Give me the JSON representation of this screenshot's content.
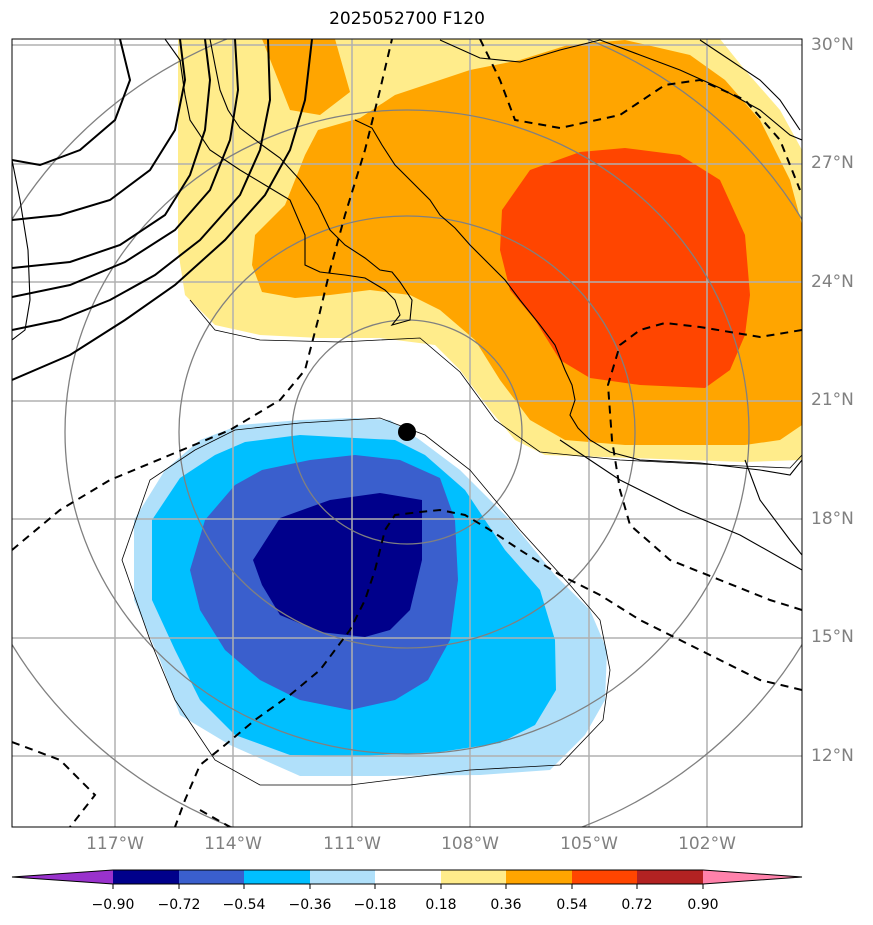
{
  "title": "2025052700 F120",
  "lat_labels": [
    "30°N",
    "27°N",
    "24°N",
    "21°N",
    "18°N",
    "15°N",
    "12°N"
  ],
  "lon_labels": [
    "117°W",
    "114°W",
    "111°W",
    "108°W",
    "105°W",
    "102°W"
  ],
  "colorbar": {
    "labels": [
      "−0.90",
      "−0.72",
      "−0.54",
      "−0.36",
      "−0.18",
      "0.18",
      "0.36",
      "0.54",
      "0.72",
      "0.90"
    ],
    "colors": [
      "#9932cc",
      "#00008b",
      "#3a5fcd",
      "#00bfff",
      "#b0e0fa",
      "#ffffff",
      "#ffec8b",
      "#ffa500",
      "#ff4500",
      "#b22222",
      "#ff82ab"
    ]
  },
  "colors": {
    "gridline": "#b0b0b0",
    "coastline": "#000000",
    "range_ring": "#808080",
    "center_marker": "#000000"
  },
  "map": {
    "lon_range_deg_w": [
      119.5,
      99.5
    ],
    "lat_range_deg_n": [
      10.2,
      30.2
    ],
    "storm_center": {
      "lat": 20.2,
      "lon_deg_w": 109.5
    }
  }
}
